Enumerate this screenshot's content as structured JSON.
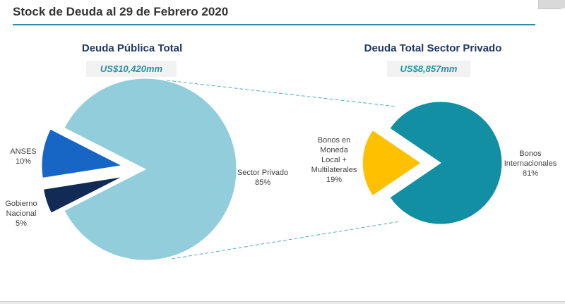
{
  "page": {
    "title": "Stock de Deuda al 29 de Febrero 2020"
  },
  "chart_data": [
    {
      "type": "pie",
      "title": "Deuda Pública Total",
      "total_label": "US$10,420mm",
      "legend_position": "none",
      "slices": [
        {
          "label": "Sector Privado",
          "pct": 85,
          "pct_label": "85%",
          "color": "#92CDDC",
          "exploded": false,
          "label_lines": [
            "Sector Privado"
          ]
        },
        {
          "label": "ANSES",
          "pct": 10,
          "pct_label": "10%",
          "color": "#1766C5",
          "exploded": true,
          "label_lines": [
            "ANSES"
          ]
        },
        {
          "label": "Gobierno Nacional",
          "pct": 5,
          "pct_label": "5%",
          "color": "#122A56",
          "exploded": true,
          "label_lines": [
            "Gobierno",
            "Nacional"
          ]
        }
      ]
    },
    {
      "type": "pie",
      "title": "Deuda Total Sector Privado",
      "total_label": "US$8,857mm",
      "legend_position": "none",
      "slices": [
        {
          "label": "Bonos Internacionales",
          "pct": 81,
          "pct_label": "81%",
          "color": "#128FA3",
          "exploded": false,
          "label_lines": [
            "Bonos",
            "Internacionales"
          ]
        },
        {
          "label": "Bonos en Moneda Local + Multilaterales",
          "pct": 19,
          "pct_label": "19%",
          "color": "#FFC000",
          "exploded": true,
          "label_lines": [
            "Bonos en",
            "Moneda",
            "Local +",
            "Multilaterales"
          ]
        }
      ]
    }
  ],
  "styles": {
    "accent_teal": "#2B8FA3",
    "title_navy": "#1F3864",
    "badge_bg": "#F2F2F2",
    "connector_color": "#4BACC6"
  }
}
